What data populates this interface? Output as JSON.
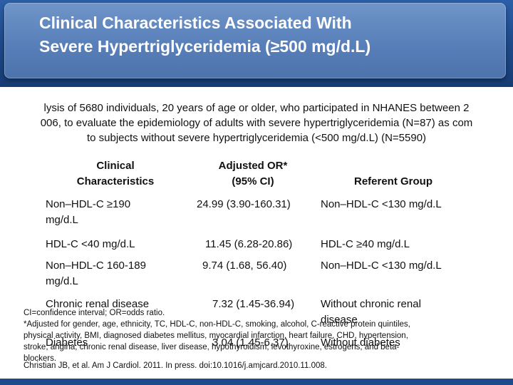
{
  "slide": {
    "title_line1": "Clinical Characteristics Associated With",
    "title_line2": "Severe Hypertriglyceridemia (≥500 mg/d.L)"
  },
  "intro": {
    "line1": "lysis of 5680 individuals, 20 years of age or older, who participated in NHANES between 2",
    "line2": "006, to evaluate the epidemiology of adults with severe hypertriglyceridemia (N=87) as com",
    "line3": "to subjects without severe hypertriglyceridemia (<500 mg/d.L) (N=5590)"
  },
  "table": {
    "headers": {
      "col1_line1": "Clinical",
      "col1_line2": "Characteristics",
      "col2_line1": "Adjusted OR*",
      "col2_line2": "(95% CI)",
      "col3": "Referent Group"
    },
    "rows": [
      {
        "char_line1": "Non–HDL-C ≥190",
        "char_line2": "mg/d.L",
        "or": "24.99 (3.90-160.31)",
        "ref_line1": "Non–HDL-C <130 mg/d.L",
        "ref_line2": ""
      },
      {
        "char_line1": "HDL-C <40 mg/d.L",
        "char_line2": "",
        "or": "11.45 (6.28-20.86)",
        "ref_line1": "HDL-C ≥40 mg/d.L",
        "ref_line2": ""
      },
      {
        "char_line1": "Non–HDL-C 160-189",
        "char_line2": "mg/d.L",
        "or": "9.74 (1.68, 56.40)",
        "ref_line1": "Non–HDL-C <130 mg/d.L",
        "ref_line2": ""
      },
      {
        "char_line1": "Chronic renal disease",
        "char_line2": "",
        "or": "7.32 (1.45-36.94)",
        "ref_line1": "Without chronic renal",
        "ref_line2": "disease"
      },
      {
        "char_line1": "Diabetes",
        "char_line2": "",
        "or": "3.04 (1.45-6.37)",
        "ref_line1": "Without diabetes",
        "ref_line2": ""
      }
    ]
  },
  "footnotes": {
    "abbrev": "CI=confidence interval; OR=odds ratio.",
    "adjusted_line1": "*Adjusted for gender, age, ethnicity, TC, HDL-C, non-HDL-C, smoking, alcohol, C-reactive protein quintiles,",
    "adjusted_line2": "physical activity, BMI, diagnosed diabetes mellitus, myocardial infarction, heart failure, CHD, hypertension,",
    "adjusted_line3": "stroke, angina, chronic renal disease, liver disease, hypothyroidism, levothyroxine, estrogens, and beta-",
    "adjusted_line4": "blockers.",
    "citation": "Christian JB, et al. Am J Cardiol. 2011. In press. doi:10.1016/j.amjcard.2010.11.008."
  }
}
